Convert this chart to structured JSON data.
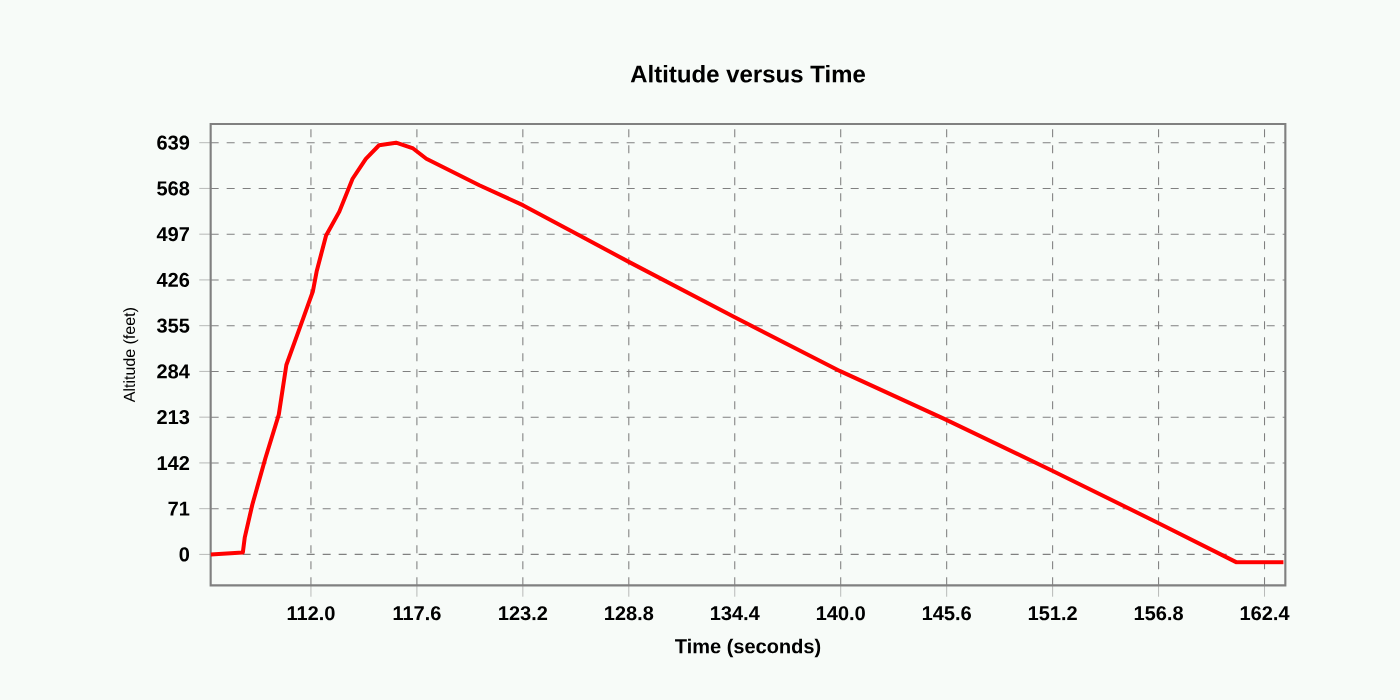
{
  "chart_data": {
    "type": "line",
    "title": "Altitude versus Time",
    "xlabel": "Time (seconds)",
    "ylabel": "Altitude (feet)",
    "xlim": [
      106.7,
      163.5
    ],
    "ylim": [
      -48,
      668
    ],
    "xticks": [
      {
        "value": 112,
        "label": "112.0"
      },
      {
        "value": 117.6,
        "label": "117.6"
      },
      {
        "value": 123.2,
        "label": "123.2"
      },
      {
        "value": 128.8,
        "label": "128.8"
      },
      {
        "value": 134.4,
        "label": "134.4"
      },
      {
        "value": 140,
        "label": "140.0"
      },
      {
        "value": 145.6,
        "label": "145.6"
      },
      {
        "value": 151.2,
        "label": "151.2"
      },
      {
        "value": 156.8,
        "label": "156.8"
      },
      {
        "value": 162.4,
        "label": "162.4"
      }
    ],
    "yticks": [
      0,
      71,
      142,
      213,
      284,
      355,
      426,
      497,
      568,
      639
    ],
    "grid": true,
    "line_style": "solid",
    "series": [
      {
        "color": "#ff0000",
        "x": [
          106.7,
          108.4,
          108.5,
          108.9,
          109.6,
          110.3,
          110.7,
          111.6,
          112.1,
          112.3,
          112.8,
          113.5,
          114.2,
          114.9,
          115.6,
          116.5,
          117.4,
          118.1,
          120.9,
          123.2,
          126.2,
          128.8,
          134.4,
          140.0,
          145.5,
          151.1,
          156.7,
          160.9,
          163.4
        ],
        "values": [
          0,
          3,
          26,
          77,
          150,
          217,
          294,
          367,
          408,
          439,
          495,
          532,
          583,
          614,
          635,
          639,
          630,
          614,
          573,
          542,
          495,
          454,
          368,
          284,
          210,
          131,
          50,
          -12,
          -12
        ]
      }
    ]
  }
}
